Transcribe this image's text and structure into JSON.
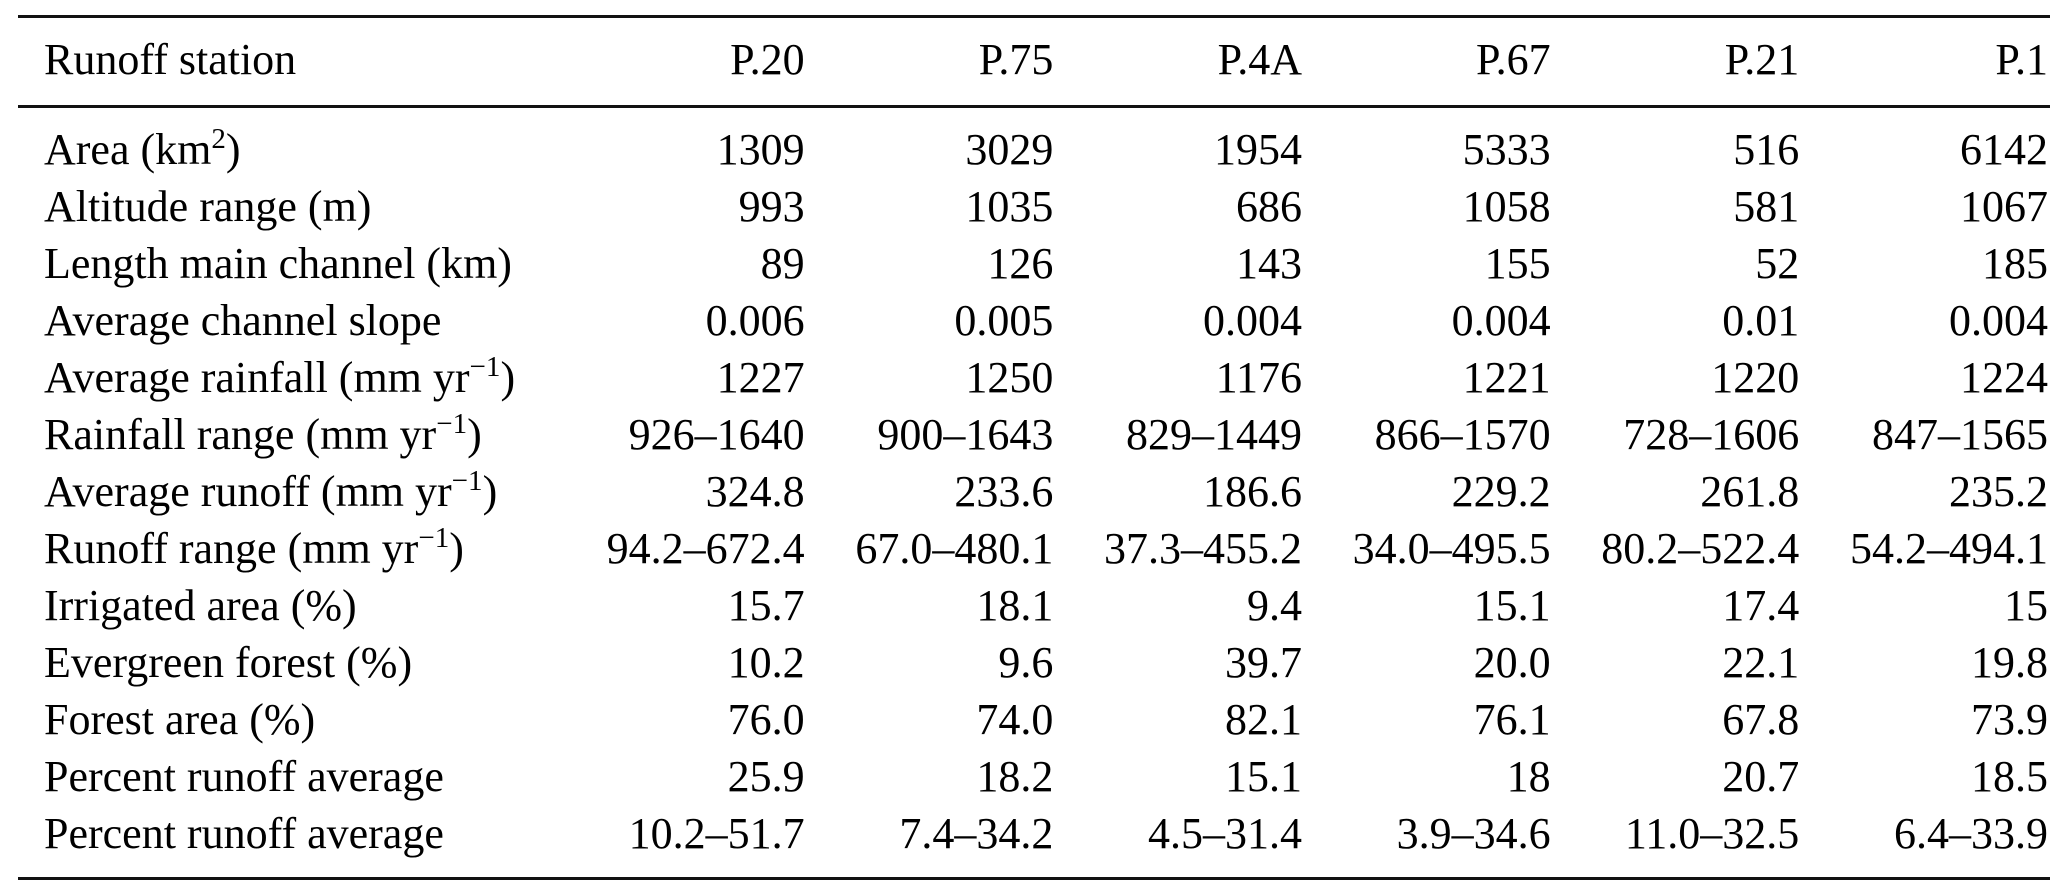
{
  "table": {
    "columns": [
      "Runoff station",
      "P.20",
      "P.75",
      "P.4A",
      "P.67",
      "P.21",
      "P.1"
    ],
    "rows": [
      {
        "label_parts": [
          {
            "text": "Area (km"
          },
          {
            "text": "2",
            "sup": true
          },
          {
            "text": ")"
          }
        ],
        "values": [
          "1309",
          "3029",
          "1954",
          "5333",
          "516",
          "6142"
        ]
      },
      {
        "label_parts": [
          {
            "text": "Altitude range (m)"
          }
        ],
        "values": [
          "993",
          "1035",
          "686",
          "1058",
          "581",
          "1067"
        ]
      },
      {
        "label_parts": [
          {
            "text": "Length main channel (km)"
          }
        ],
        "values": [
          "89",
          "126",
          "143",
          "155",
          "52",
          "185"
        ]
      },
      {
        "label_parts": [
          {
            "text": "Average channel slope"
          }
        ],
        "values": [
          "0.006",
          "0.005",
          "0.004",
          "0.004",
          "0.01",
          "0.004"
        ]
      },
      {
        "label_parts": [
          {
            "text": "Average rainfall (mm yr"
          },
          {
            "text": "−1",
            "sup": true
          },
          {
            "text": ")"
          }
        ],
        "values": [
          "1227",
          "1250",
          "1176",
          "1221",
          "1220",
          "1224"
        ]
      },
      {
        "label_parts": [
          {
            "text": "Rainfall range (mm yr"
          },
          {
            "text": "−1",
            "sup": true
          },
          {
            "text": ")"
          }
        ],
        "values": [
          "926–1640",
          "900–1643",
          "829–1449",
          "866–1570",
          "728–1606",
          "847–1565"
        ]
      },
      {
        "label_parts": [
          {
            "text": "Average runoff (mm yr"
          },
          {
            "text": "−1",
            "sup": true
          },
          {
            "text": ")"
          }
        ],
        "values": [
          "324.8",
          "233.6",
          "186.6",
          "229.2",
          "261.8",
          "235.2"
        ]
      },
      {
        "label_parts": [
          {
            "text": "Runoff range (mm yr"
          },
          {
            "text": "−1",
            "sup": true
          },
          {
            "text": ")"
          }
        ],
        "values": [
          "94.2–672.4",
          "67.0–480.1",
          "37.3–455.2",
          "34.0–495.5",
          "80.2–522.4",
          "54.2–494.1"
        ]
      },
      {
        "label_parts": [
          {
            "text": "Irrigated area (%)"
          }
        ],
        "values": [
          "15.7",
          "18.1",
          "9.4",
          "15.1",
          "17.4",
          "15"
        ]
      },
      {
        "label_parts": [
          {
            "text": "Evergreen forest (%)"
          }
        ],
        "values": [
          "10.2",
          "9.6",
          "39.7",
          "20.0",
          "22.1",
          "19.8"
        ]
      },
      {
        "label_parts": [
          {
            "text": "Forest area (%)"
          }
        ],
        "values": [
          "76.0",
          "74.0",
          "82.1",
          "76.1",
          "67.8",
          "73.9"
        ]
      },
      {
        "label_parts": [
          {
            "text": "Percent runoff average"
          }
        ],
        "values": [
          "25.9",
          "18.2",
          "15.1",
          "18",
          "20.7",
          "18.5"
        ]
      },
      {
        "label_parts": [
          {
            "text": "Percent runoff average"
          }
        ],
        "values": [
          "10.2–51.7",
          "7.4–34.2",
          "4.5–31.4",
          "3.9–34.6",
          "11.0–32.5",
          "6.4–33.9"
        ]
      }
    ]
  }
}
